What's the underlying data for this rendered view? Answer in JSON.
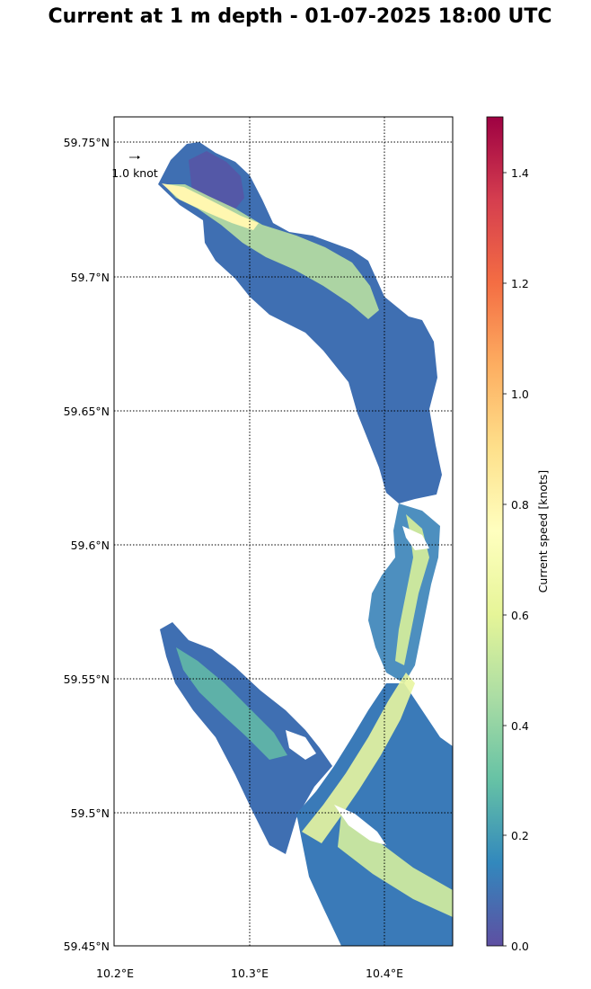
{
  "title": "Current at 1 m depth - 01-07-2025 18:00 UTC",
  "map": {
    "lon_ticks": [
      "10.2°E",
      "10.3°E",
      "10.4°E"
    ],
    "lat_ticks": [
      "59.75°N",
      "59.7°N",
      "59.65°N",
      "59.6°N",
      "59.55°N",
      "59.5°N",
      "59.45°N"
    ],
    "gridlines": true,
    "reference_arrow_label": "1.0 knot"
  },
  "colorbar": {
    "label": "Current speed [knots]",
    "ticks": [
      "0.0",
      "0.2",
      "0.4",
      "0.6",
      "0.8",
      "1.0",
      "1.2",
      "1.4"
    ],
    "range": [
      0,
      1.5
    ],
    "colormap": [
      "#5e4fa2",
      "#3288bd",
      "#66c2a5",
      "#abdda4",
      "#e6f598",
      "#ffffbf",
      "#fee08b",
      "#fdae61",
      "#f46d43",
      "#d53e4f",
      "#9e0142"
    ]
  }
}
